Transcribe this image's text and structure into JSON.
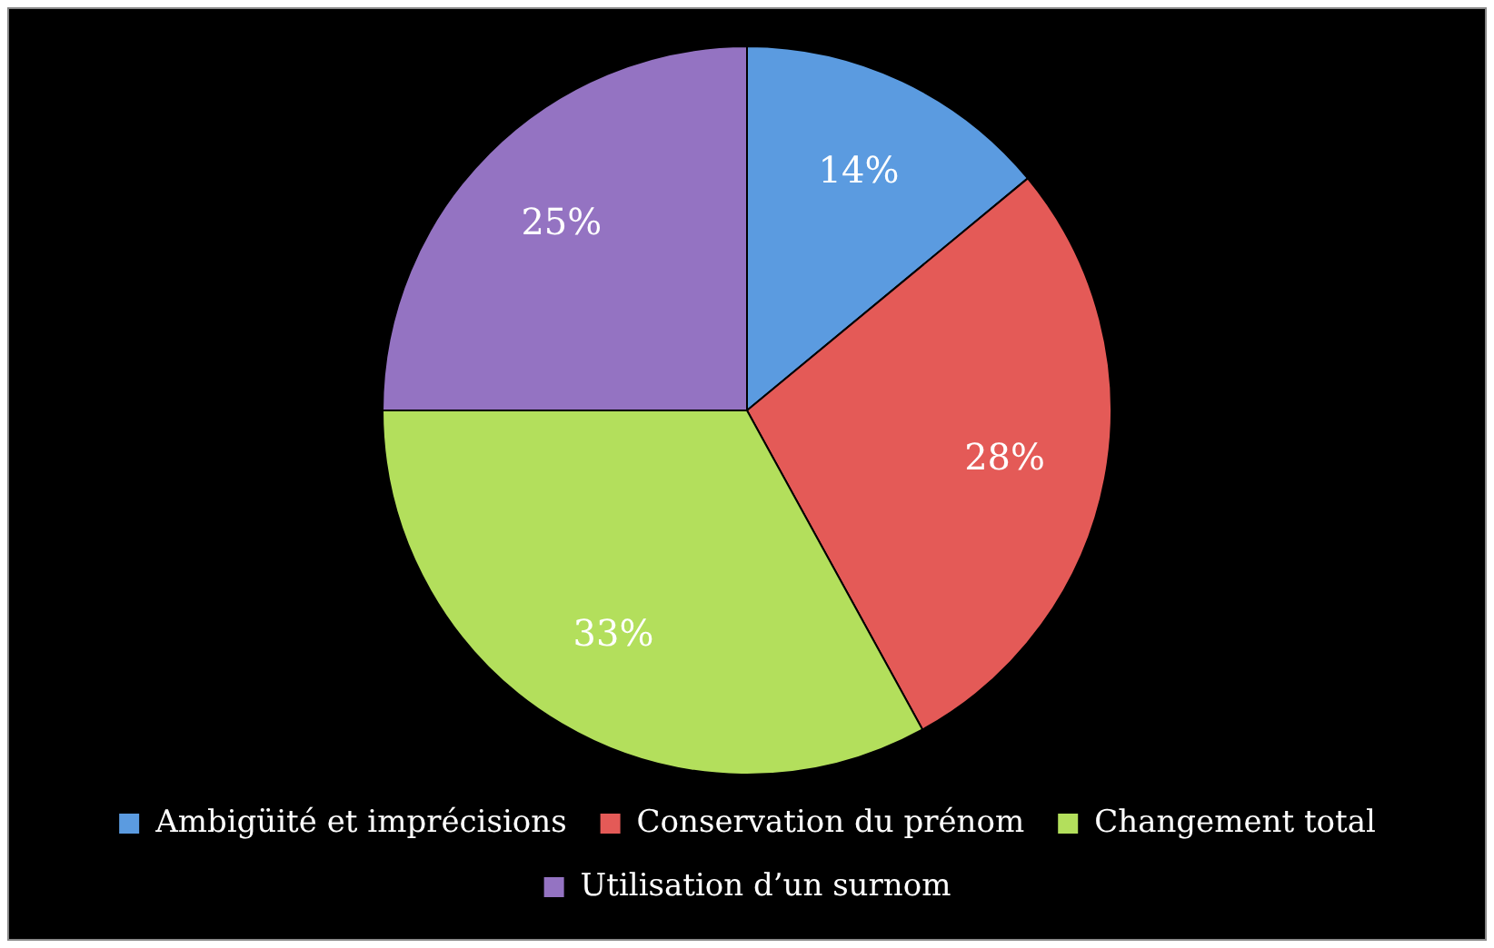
{
  "chart_data": {
    "type": "pie",
    "categories": [
      "Ambigüité et imprécisions",
      "Conservation du prénom",
      "Changement total",
      "Utilisation d’un surnom"
    ],
    "values": [
      14,
      28,
      33,
      25
    ],
    "colors": [
      "#5b9be0",
      "#e45a57",
      "#b3df5c",
      "#9473c2"
    ],
    "value_labels": [
      "14%",
      "28%",
      "33%",
      "25%"
    ],
    "legend": "bottom"
  }
}
